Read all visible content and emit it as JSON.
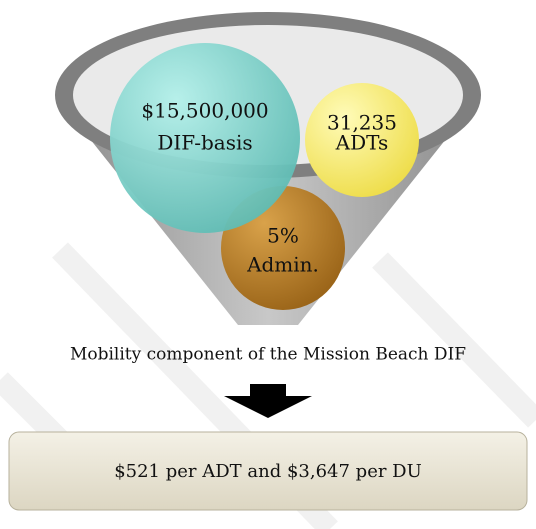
{
  "funnel": {
    "items": [
      {
        "lines": [
          "$15,500,000",
          "DIF-basis"
        ]
      },
      {
        "lines": [
          "31,235",
          "ADTs"
        ]
      },
      {
        "lines": [
          "5%",
          "Admin."
        ]
      }
    ]
  },
  "caption": "Mobility component of the Mission Beach DIF",
  "result": "$521 per ADT and $3,647 per DU"
}
